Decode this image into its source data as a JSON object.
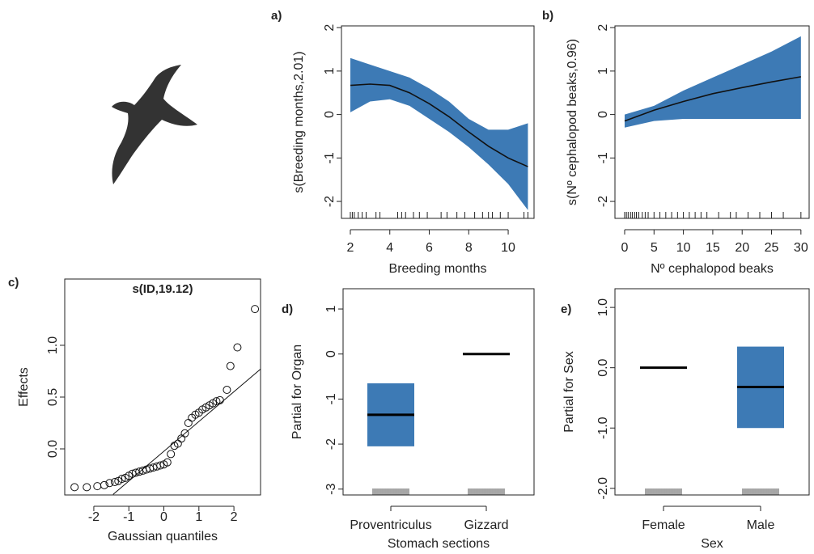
{
  "chart_data": [
    {
      "type": "line",
      "panel_label": "a)",
      "x_label": "Breeding months",
      "y_label": "s(Breeding months,2.01)",
      "x": [
        2,
        3,
        4,
        5,
        6,
        7,
        8,
        9,
        10,
        11
      ],
      "values": [
        0.67,
        0.7,
        0.67,
        0.5,
        0.25,
        -0.05,
        -0.4,
        -0.73,
        -1.0,
        -1.2
      ],
      "upper": [
        1.3,
        1.15,
        1.0,
        0.85,
        0.6,
        0.3,
        -0.1,
        -0.35,
        -0.35,
        -0.2
      ],
      "lower": [
        0.05,
        0.3,
        0.35,
        0.2,
        -0.1,
        -0.4,
        -0.75,
        -1.15,
        -1.6,
        -2.2
      ],
      "rug": [
        2,
        2.1,
        2.2,
        2.4,
        2.6,
        2.8,
        3.3,
        3.5,
        4.4,
        4.6,
        4.8,
        5.2,
        5.5,
        5.9,
        6.6,
        6.9,
        7.4,
        7.8,
        8.3,
        8.7,
        9.0,
        9.2,
        9.6,
        10.0,
        10.8,
        11
      ],
      "color": "#3d7ab5",
      "line_color": "#111111",
      "xlim": [
        1.55,
        11.31
      ],
      "ylim": [
        -2.39,
        2.04
      ],
      "xticks": [
        2,
        4,
        6,
        8,
        10
      ],
      "yticks": [
        -2,
        -1,
        0,
        1,
        2
      ]
    },
    {
      "type": "line",
      "panel_label": "b)",
      "x_label": "Nº cephalopod beaks",
      "y_label": "s(Nº cephalopod beaks,0.96)",
      "x": [
        0,
        5,
        10,
        15,
        20,
        25,
        30
      ],
      "values": [
        -0.15,
        0.1,
        0.3,
        0.48,
        0.62,
        0.75,
        0.87
      ],
      "upper": [
        0,
        0.2,
        0.55,
        0.85,
        1.15,
        1.45,
        1.8
      ],
      "lower": [
        -0.3,
        -0.15,
        -0.1,
        -0.1,
        -0.1,
        -0.1,
        -0.1
      ],
      "rug": [
        0,
        0.3,
        0.6,
        1,
        1.3,
        1.7,
        2,
        2.4,
        3,
        3.5,
        4,
        5,
        6,
        7,
        8,
        9,
        10,
        11,
        12,
        13,
        14,
        16,
        18,
        19,
        21,
        23,
        25,
        27,
        30
      ],
      "color": "#3d7ab5",
      "line_color": "#111111",
      "xlim": [
        -1.65,
        31.4
      ],
      "ylim": [
        -2.39,
        2.04
      ],
      "xticks": [
        0,
        5,
        10,
        15,
        20,
        25,
        30
      ],
      "yticks": [
        -2,
        -1,
        0,
        1,
        2
      ]
    },
    {
      "type": "scatter",
      "panel_label": "c)",
      "title": "s(ID,19.12)",
      "x_label": "Gaussian quantiles",
      "y_label": "Effects",
      "x": [
        -2.55,
        -2.2,
        -1.9,
        -1.7,
        -1.55,
        -1.4,
        -1.3,
        -1.2,
        -1.1,
        -1.0,
        -0.9,
        -0.8,
        -0.7,
        -0.6,
        -0.5,
        -0.4,
        -0.3,
        -0.2,
        -0.1,
        0,
        0.1,
        0.2,
        0.3,
        0.4,
        0.5,
        0.6,
        0.7,
        0.8,
        0.9,
        1.0,
        1.1,
        1.2,
        1.3,
        1.4,
        1.5,
        1.6,
        1.8,
        1.9,
        2.1,
        2.6
      ],
      "values": [
        -0.37,
        -0.37,
        -0.36,
        -0.35,
        -0.33,
        -0.32,
        -0.31,
        -0.29,
        -0.28,
        -0.26,
        -0.24,
        -0.23,
        -0.22,
        -0.21,
        -0.2,
        -0.19,
        -0.18,
        -0.17,
        -0.16,
        -0.15,
        -0.13,
        -0.05,
        0.03,
        0.05,
        0.1,
        0.15,
        0.25,
        0.3,
        0.33,
        0.35,
        0.38,
        0.4,
        0.42,
        0.44,
        0.46,
        0.47,
        0.57,
        0.8,
        0.98,
        1.35
      ],
      "reference_line": {
        "x": [
          -1.45,
          2.76
        ],
        "y": [
          -0.44,
          0.77
        ]
      },
      "xlim": [
        -2.83,
        2.76
      ],
      "ylim": [
        -0.445,
        1.64
      ],
      "xticks": [
        -2,
        -1,
        0,
        1,
        2
      ],
      "yticks": [
        {
          "value": 0,
          "label": "0.0"
        },
        {
          "value": 0.5,
          "label": "0.5"
        },
        {
          "value": 1,
          "label": "1.0"
        }
      ]
    },
    {
      "type": "crossbar",
      "panel_label": "d)",
      "x_label": "Stomach sections",
      "y_label": "Partial for Organ",
      "categories": [
        "Proventriculus",
        "Gizzard"
      ],
      "values": [
        -1.35,
        0
      ],
      "upper": [
        -0.65,
        null
      ],
      "lower": [
        -2.05,
        null
      ],
      "color": "#3d7ab5",
      "ylim": [
        -3.13,
        1.45
      ],
      "yticks": [
        -3,
        -2,
        -1,
        0,
        1
      ]
    },
    {
      "type": "crossbar",
      "panel_label": "e)",
      "x_label": "Sex",
      "y_label": "Partial for Sex",
      "categories": [
        "Female",
        "Male"
      ],
      "values": [
        0,
        -0.32
      ],
      "upper": [
        null,
        0.35
      ],
      "lower": [
        null,
        -1.0
      ],
      "color": "#3d7ab5",
      "ylim": [
        -2.11,
        1.31
      ],
      "yticks": [
        {
          "value": -2,
          "label": "-2.0"
        },
        {
          "value": -1,
          "label": "-1.0"
        },
        {
          "value": 0,
          "label": "0.0"
        },
        {
          "value": 1,
          "label": "1.0"
        }
      ]
    }
  ]
}
